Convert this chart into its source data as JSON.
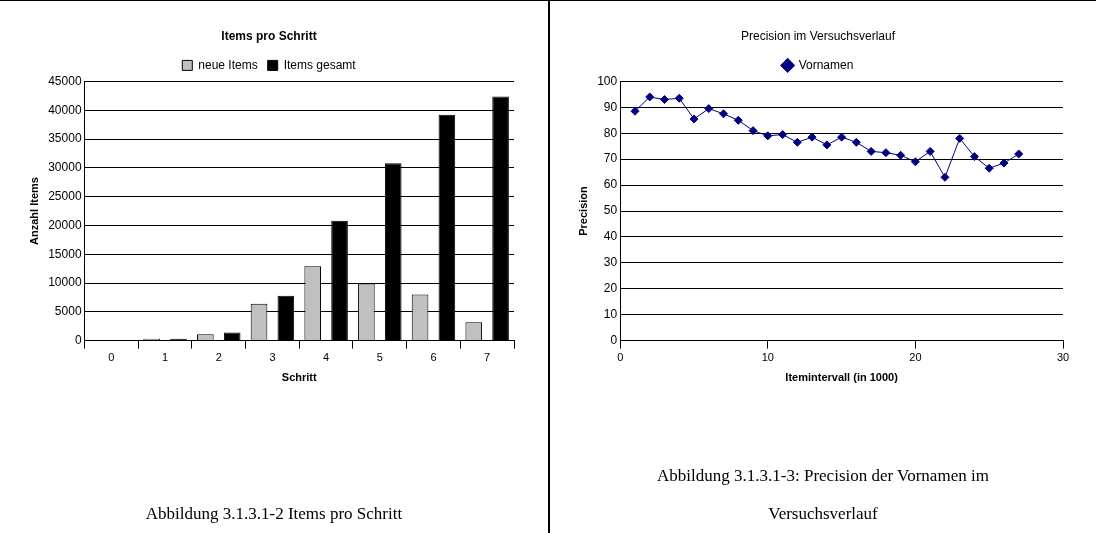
{
  "chart_data": [
    {
      "type": "bar",
      "title": "Items pro Schritt",
      "xlabel": "Schritt",
      "ylabel": "Anzahl Items",
      "categories": [
        "0",
        "1",
        "2",
        "3",
        "4",
        "5",
        "6",
        "7"
      ],
      "series": [
        {
          "name": "neue Items",
          "color": "#c0c0c0",
          "values": [
            0,
            300,
            1100,
            6400,
            12900,
            9900,
            8000,
            3200
          ]
        },
        {
          "name": "Items gesamt",
          "color": "#000000",
          "values": [
            0,
            300,
            1400,
            7800,
            20800,
            30800,
            39200,
            42400
          ]
        }
      ],
      "ylim": [
        0,
        45000
      ],
      "yticks": [
        0,
        5000,
        10000,
        15000,
        20000,
        25000,
        30000,
        35000,
        40000,
        45000
      ],
      "grid": "y",
      "legend": "top",
      "annotations": [
        "Abbildung 3.1.3.1-2  Items pro Schritt"
      ]
    },
    {
      "type": "line",
      "title": "Precision im Versuchsverlauf",
      "xlabel": "Itemintervall (in 1000)",
      "ylabel": "Precision",
      "series": [
        {
          "name": "Vornamen",
          "color": "#000080",
          "x": [
            1,
            2,
            3,
            4,
            5,
            6,
            7,
            8,
            9,
            10,
            11,
            12,
            13,
            14,
            15,
            16,
            17,
            18,
            19,
            20,
            21,
            22,
            23,
            24,
            25,
            26,
            27
          ],
          "values": [
            88.5,
            94,
            93,
            93.5,
            85.5,
            89.5,
            87.5,
            85,
            81,
            79,
            79.5,
            76.5,
            78.5,
            75.5,
            78.5,
            76.5,
            73,
            72.5,
            71.5,
            69,
            73,
            63,
            78,
            71,
            66.5,
            68.5,
            72
          ]
        }
      ],
      "xlim": [
        0,
        30
      ],
      "xticks": [
        0,
        10,
        20,
        30
      ],
      "ylim": [
        0,
        100
      ],
      "yticks": [
        0,
        10,
        20,
        30,
        40,
        50,
        60,
        70,
        80,
        90,
        100
      ],
      "grid": "y",
      "legend": "top",
      "marker": "diamond",
      "line_style": "solid",
      "annotations": [
        "Abbildung 3.1.3.1-3: Precision der Vornamen im Versuchsverlauf"
      ]
    }
  ]
}
